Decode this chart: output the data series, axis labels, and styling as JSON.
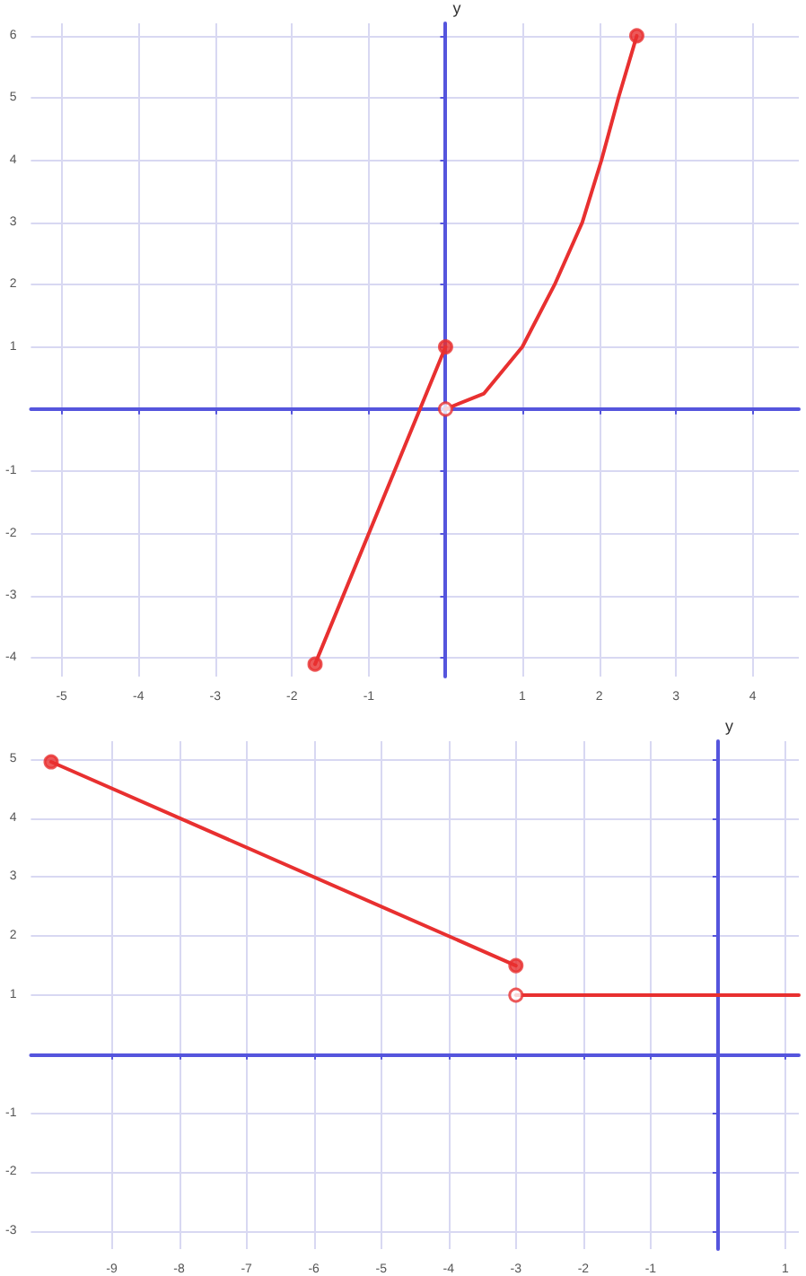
{
  "chart_data": [
    {
      "type": "line",
      "ylabel": "y",
      "xlim": [
        -5.4,
        4.6
      ],
      "ylim": [
        -4.3,
        6.2
      ],
      "xticks": [
        {
          "value": -5,
          "label": "-5"
        },
        {
          "value": -4,
          "label": "-4"
        },
        {
          "value": -3,
          "label": "-3"
        },
        {
          "value": -2,
          "label": "-2"
        },
        {
          "value": -1,
          "label": "-1"
        },
        {
          "value": 0,
          "label": null
        },
        {
          "value": 1,
          "label": "1"
        },
        {
          "value": 2,
          "label": "2"
        },
        {
          "value": 3,
          "label": "3"
        },
        {
          "value": 4,
          "label": "4"
        }
      ],
      "yticks": [
        {
          "value": -4,
          "label": "-4"
        },
        {
          "value": -3,
          "label": "-3"
        },
        {
          "value": -2,
          "label": "-2"
        },
        {
          "value": -1,
          "label": "-1"
        },
        {
          "value": 0,
          "label": null
        },
        {
          "value": 1,
          "label": "1"
        },
        {
          "value": 2,
          "label": "2"
        },
        {
          "value": 3,
          "label": "3"
        },
        {
          "value": 4,
          "label": "4"
        },
        {
          "value": 5,
          "label": "5"
        },
        {
          "value": 6,
          "label": "6"
        }
      ],
      "grid": true,
      "marker": "none",
      "line_style": "solid",
      "series": [
        {
          "type": "line",
          "color": "#e83030",
          "x": [
            -1.7,
            0
          ],
          "values": [
            -4.1,
            1
          ]
        },
        {
          "type": "line",
          "color": "#e83030",
          "x": [
            0,
            0.5,
            1,
            1.42,
            1.78,
            2.03,
            2.25,
            2.49
          ],
          "values": [
            0,
            0.25,
            1,
            2,
            3,
            4,
            5,
            6
          ]
        },
        {
          "type": "scatter",
          "marker": "circle",
          "color": "#e83030",
          "x": [
            -1.7,
            0,
            2.49
          ],
          "values": [
            -4.1,
            1,
            6
          ]
        },
        {
          "type": "scatter",
          "marker": "circle",
          "color": "#ffffff",
          "x": [
            0
          ],
          "values": [
            0
          ]
        }
      ]
    },
    {
      "type": "line",
      "ylabel": "y",
      "xlim": [
        -10.2,
        1.2
      ],
      "ylim": [
        -3.3,
        5.3
      ],
      "xticks": [
        {
          "value": -9,
          "label": "-9"
        },
        {
          "value": -8,
          "label": "-8"
        },
        {
          "value": -7,
          "label": "-7"
        },
        {
          "value": -6,
          "label": "-6"
        },
        {
          "value": -5,
          "label": "-5"
        },
        {
          "value": -4,
          "label": "-4"
        },
        {
          "value": -3,
          "label": "-3"
        },
        {
          "value": -2,
          "label": "-2"
        },
        {
          "value": -1,
          "label": "-1"
        },
        {
          "value": 0,
          "label": null
        },
        {
          "value": 1,
          "label": "1"
        }
      ],
      "yticks": [
        {
          "value": -3,
          "label": "-3"
        },
        {
          "value": -2,
          "label": "-2"
        },
        {
          "value": -1,
          "label": "-1"
        },
        {
          "value": 0,
          "label": null
        },
        {
          "value": 1,
          "label": "1"
        },
        {
          "value": 2,
          "label": "2"
        },
        {
          "value": 3,
          "label": "3"
        },
        {
          "value": 4,
          "label": "4"
        },
        {
          "value": 5,
          "label": "5"
        }
      ],
      "grid": true,
      "marker": "none",
      "line_style": "solid",
      "series": [
        {
          "type": "line",
          "color": "#e83030",
          "x": [
            -9.9,
            -3
          ],
          "values": [
            4.95,
            1.5
          ]
        },
        {
          "type": "line",
          "color": "#e83030",
          "x": [
            -3,
            1.2
          ],
          "values": [
            1,
            1
          ]
        },
        {
          "type": "scatter",
          "marker": "circle",
          "color": "#e83030",
          "x": [
            -9.9,
            -3
          ],
          "values": [
            4.95,
            1.5
          ]
        },
        {
          "type": "scatter",
          "marker": "circle",
          "color": "#ffffff",
          "x": [
            -3
          ],
          "values": [
            1
          ]
        }
      ]
    }
  ]
}
